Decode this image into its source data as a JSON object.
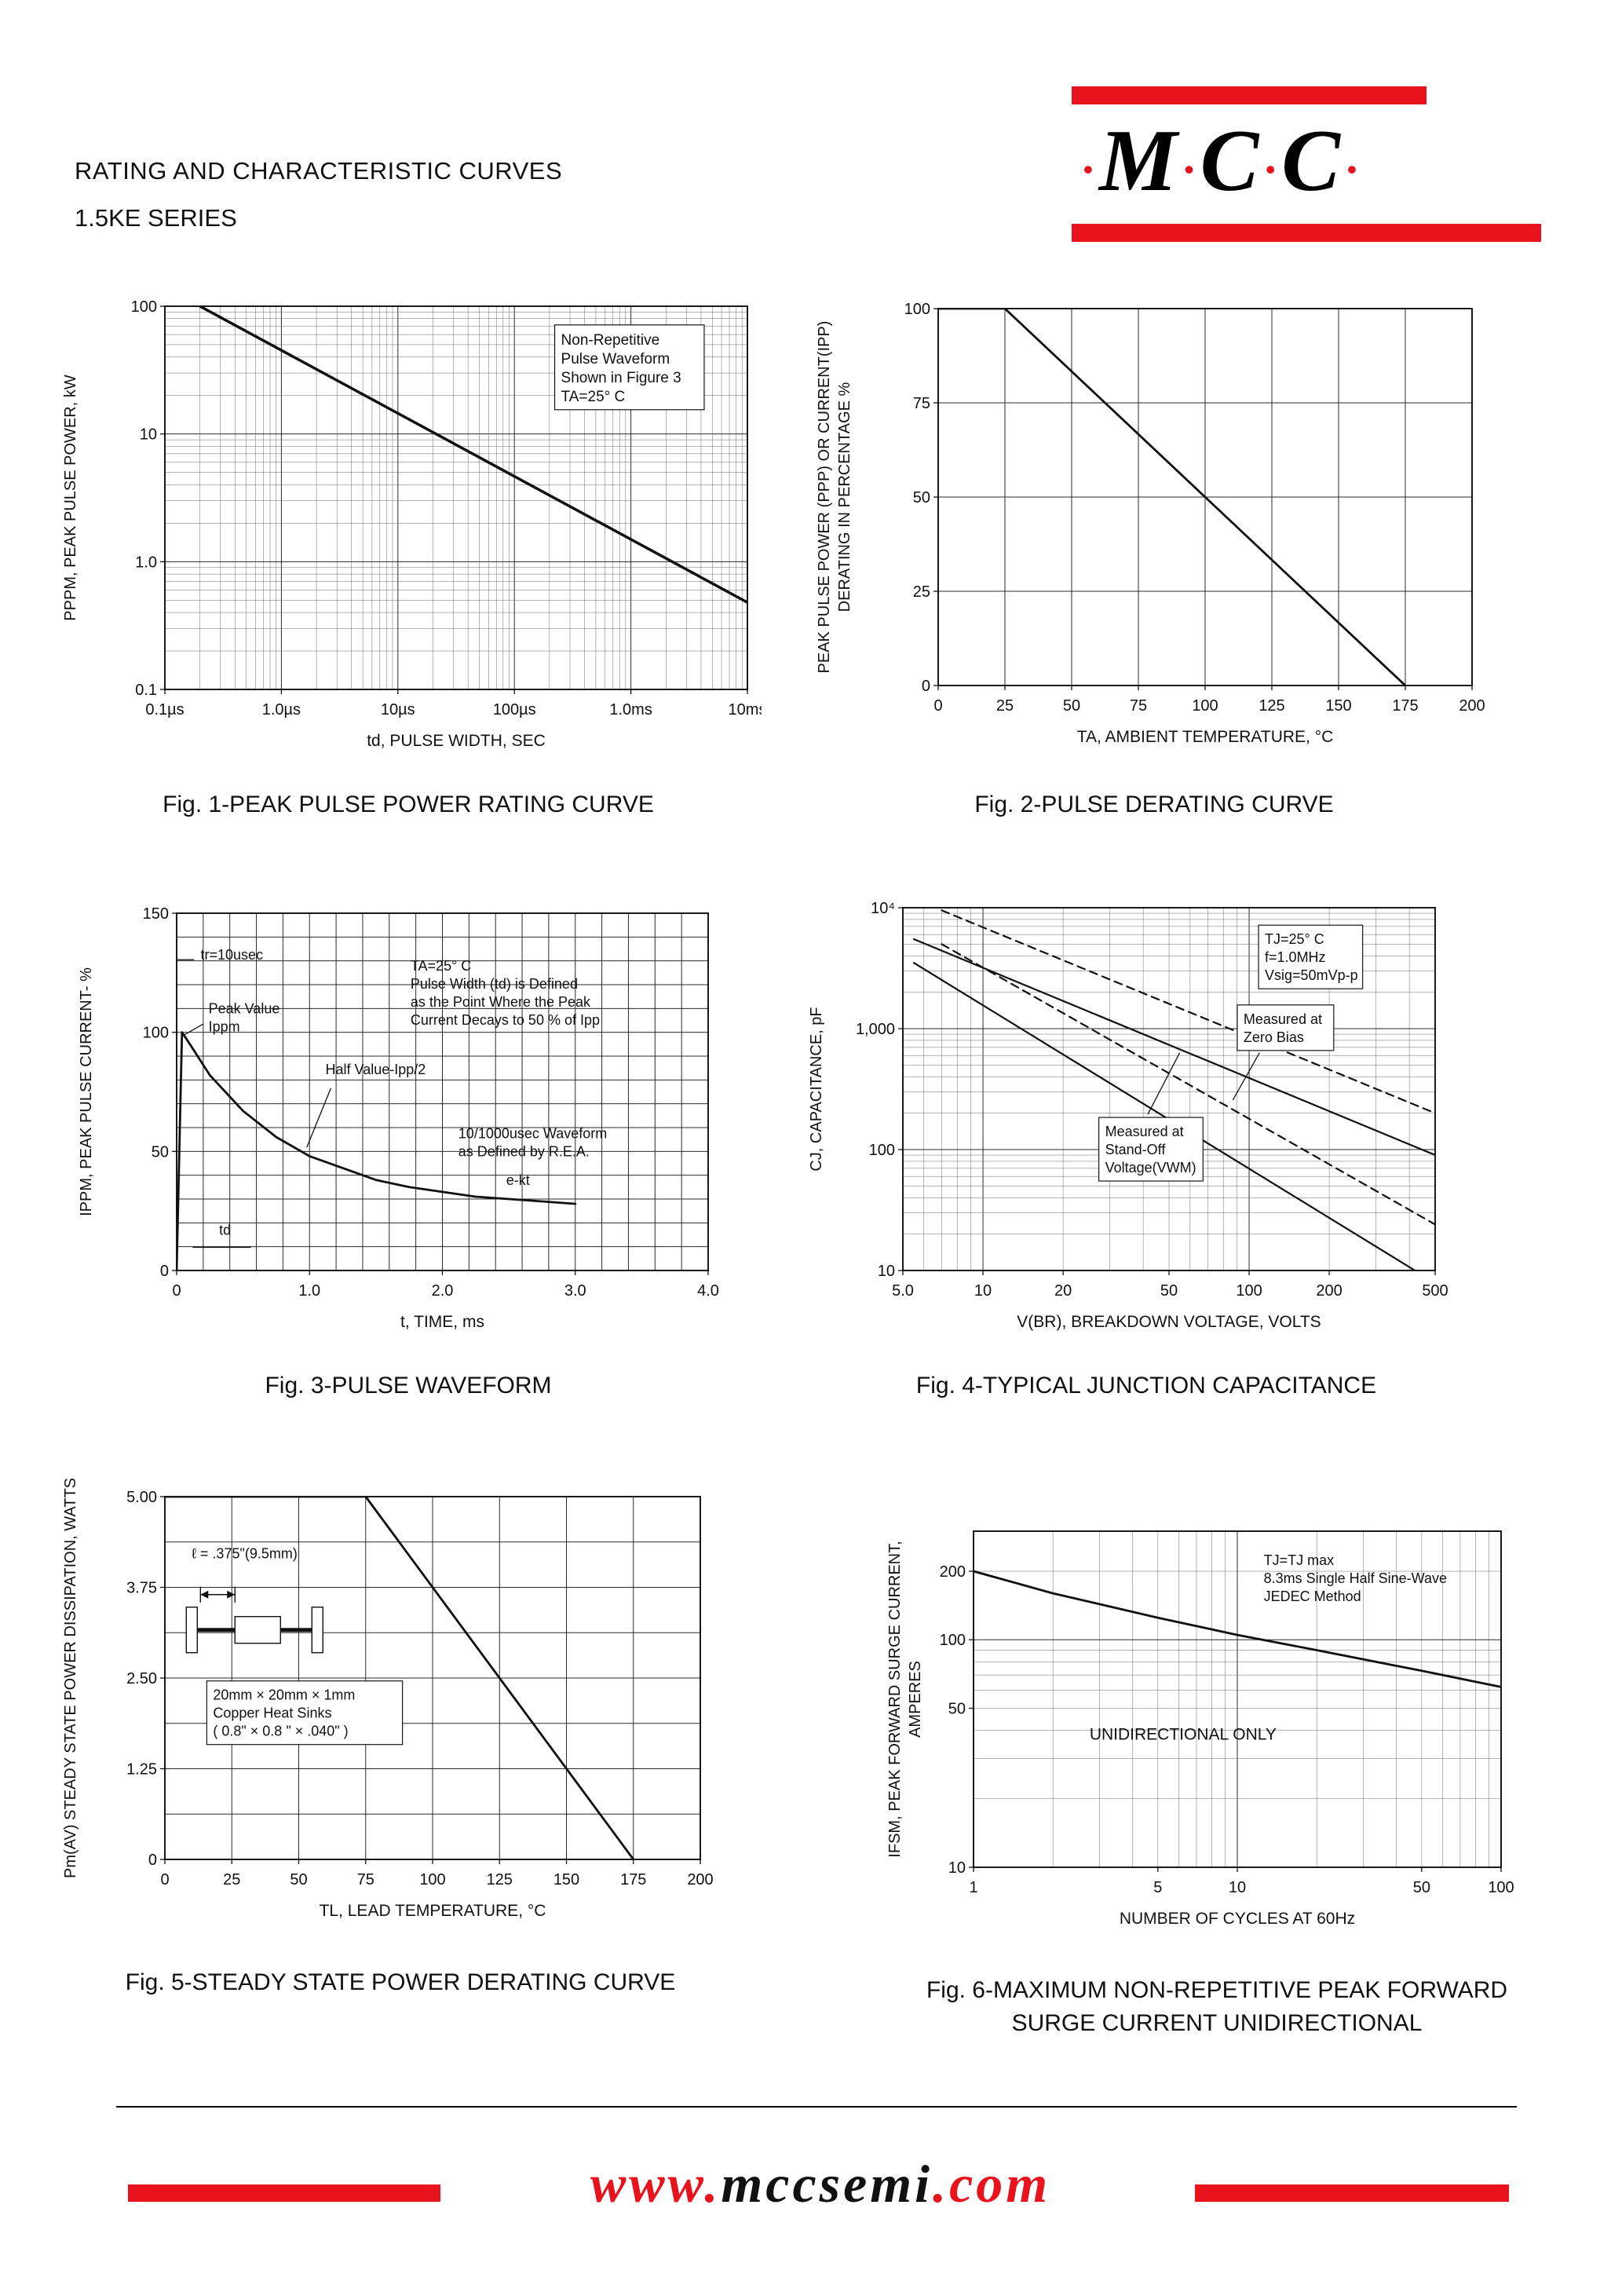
{
  "page": {
    "title": "RATING AND CHARACTERISTIC CURVES",
    "subtitle": "1.5KE SERIES",
    "colors": {
      "accent_red": "#e8131d",
      "ink": "#111111"
    }
  },
  "logo": {
    "dot": "·",
    "l1": "M",
    "l2": "C",
    "l3": "C"
  },
  "footer": {
    "prefix": "www.",
    "domain": "mccsemi",
    "suffix": ".com"
  },
  "chart_data": [
    {
      "id": "fig1",
      "type": "line",
      "caption": "Fig. 1-PEAK PULSE POWER RATING CURVE",
      "xlabel": "td, PULSE WIDTH, SEC",
      "ylabel": [
        "PPPM, PEAK PULSE POWER, kW"
      ],
      "xscale": "log",
      "xlim": [
        1e-07,
        0.01
      ],
      "yscale": "log",
      "ylim": [
        0.1,
        100
      ],
      "xticks": [
        {
          "v": 1e-07,
          "t": "0.1µs"
        },
        {
          "v": 1e-06,
          "t": "1.0µs"
        },
        {
          "v": 1e-05,
          "t": "10µs"
        },
        {
          "v": 0.0001,
          "t": "100µs"
        },
        {
          "v": 0.001,
          "t": "1.0ms"
        },
        {
          "v": 0.01,
          "t": "10ms"
        }
      ],
      "yticks": [
        {
          "v": 0.1,
          "t": "0.1"
        },
        {
          "v": 1,
          "t": "1.0"
        },
        {
          "v": 10,
          "t": "10"
        },
        {
          "v": 100,
          "t": "100"
        }
      ],
      "series": [
        {
          "name": "peak-pulse-power",
          "points": [
            [
              2e-07,
              100
            ],
            [
              0.01,
              0.48
            ]
          ],
          "width": 3.5
        }
      ],
      "annotations": [
        {
          "fx": 0.68,
          "fy": 0.1,
          "box": true,
          "fs": 19,
          "lines": [
            "Non-Repetitive",
            "Pulse Waveform",
            "Shown in Figure 3",
            "TA=25° C"
          ]
        }
      ]
    },
    {
      "id": "fig2",
      "type": "line",
      "caption": "Fig. 2-PULSE DERATING CURVE",
      "xlabel": "TA, AMBIENT  TEMPERATURE, °C",
      "ylabel": [
        "PEAK PULSE POWER (PPP) OR CURRENT(IPP)",
        "DERATING IN PERCENTAGE %"
      ],
      "xscale": "linear",
      "xlim": [
        0,
        200
      ],
      "xgrid": 25,
      "yscale": "linear",
      "ylim": [
        0,
        100
      ],
      "ygrid": 25,
      "xticks": [
        {
          "v": 0,
          "t": "0"
        },
        {
          "v": 25,
          "t": "25"
        },
        {
          "v": 50,
          "t": "50"
        },
        {
          "v": 75,
          "t": "75"
        },
        {
          "v": 100,
          "t": "100"
        },
        {
          "v": 125,
          "t": "125"
        },
        {
          "v": 150,
          "t": "150"
        },
        {
          "v": 175,
          "t": "175"
        },
        {
          "v": 200,
          "t": "200"
        }
      ],
      "yticks": [
        {
          "v": 0,
          "t": "0"
        },
        {
          "v": 25,
          "t": "25"
        },
        {
          "v": 50,
          "t": "50"
        },
        {
          "v": 75,
          "t": "75"
        },
        {
          "v": 100,
          "t": "100"
        }
      ],
      "series": [
        {
          "name": "derating",
          "points": [
            [
              0,
              100
            ],
            [
              25,
              100
            ],
            [
              175,
              0
            ]
          ],
          "width": 2.8
        }
      ],
      "annotations": []
    },
    {
      "id": "fig3",
      "type": "line",
      "caption": "Fig. 3-PULSE WAVEFORM",
      "xlabel": "t, TIME, ms",
      "ylabel": [
        "IPPM, PEAK PULSE CURRENT- %"
      ],
      "xscale": "linear",
      "xlim": [
        0,
        4
      ],
      "xgrid": 0.2,
      "yscale": "linear",
      "ylim": [
        0,
        150
      ],
      "ygrid": 10,
      "xticks": [
        {
          "v": 0,
          "t": "0"
        },
        {
          "v": 1,
          "t": "1.0"
        },
        {
          "v": 2,
          "t": "2.0"
        },
        {
          "v": 3,
          "t": "3.0"
        },
        {
          "v": 4,
          "t": "4.0"
        }
      ],
      "yticks": [
        {
          "v": 0,
          "t": "0"
        },
        {
          "v": 50,
          "t": "50"
        },
        {
          "v": 100,
          "t": "100"
        },
        {
          "v": 150,
          "t": "150"
        }
      ],
      "series": [
        {
          "name": "pulse-waveform",
          "points": [
            [
              0,
              0
            ],
            [
              0.04,
              100
            ],
            [
              0.1,
              95
            ],
            [
              0.25,
              82
            ],
            [
              0.5,
              67
            ],
            [
              0.75,
              56
            ],
            [
              1.0,
              48
            ],
            [
              1.25,
              43
            ],
            [
              1.5,
              38
            ],
            [
              1.75,
              35
            ],
            [
              2.0,
              33
            ],
            [
              2.25,
              31
            ],
            [
              2.5,
              30
            ],
            [
              2.75,
              29
            ],
            [
              3.0,
              28
            ]
          ],
          "width": 2.8
        }
      ],
      "annotations": [
        {
          "fx": 0.045,
          "fy": 0.13,
          "lines": [
            "tr=10usec"
          ],
          "leader": [
            0.0,
            0.13,
            0.033,
            0.13
          ]
        },
        {
          "fx": 0.06,
          "fy": 0.28,
          "lines": [
            "Peak Value",
            "Ippm"
          ],
          "leader": [
            0.05,
            0.31,
            0.015,
            0.34
          ]
        },
        {
          "fx": 0.28,
          "fy": 0.45,
          "lines": [
            "Half Value-Ipp/2"
          ],
          "leader": [
            0.29,
            0.49,
            0.245,
            0.655
          ]
        },
        {
          "fx": 0.44,
          "fy": 0.16,
          "lines": [
            "TA=25° C",
            "Pulse Width (td) is Defined",
            "as the Point Where the Peak",
            "Current Decays to 50 % of Ipp"
          ]
        },
        {
          "fx": 0.53,
          "fy": 0.63,
          "lines": [
            "10/1000usec Waveform",
            "as Defined by R.E.A."
          ]
        },
        {
          "fx": 0.62,
          "fy": 0.76,
          "lines": [
            "e-kt"
          ]
        },
        {
          "fx": 0.08,
          "fy": 0.9,
          "lines": [
            "td"
          ],
          "leader": [
            0.03,
            0.935,
            0.14,
            0.935
          ]
        }
      ]
    },
    {
      "id": "fig4",
      "type": "line",
      "caption": "Fig. 4-TYPICAL JUNCTION CAPACITANCE",
      "xlabel": "V(BR), BREAKDOWN VOLTAGE, VOLTS",
      "ylabel": [
        "CJ, CAPACITANCE, pF"
      ],
      "xscale": "log",
      "xlim": [
        5,
        500
      ],
      "yscale": "log",
      "ylim": [
        10,
        10000
      ],
      "xticks": [
        {
          "v": 5,
          "t": "5.0"
        },
        {
          "v": 10,
          "t": "10"
        },
        {
          "v": 20,
          "t": "20"
        },
        {
          "v": 50,
          "t": "50"
        },
        {
          "v": 100,
          "t": "100"
        },
        {
          "v": 200,
          "t": "200"
        },
        {
          "v": 500,
          "t": "500"
        }
      ],
      "yticks": [
        {
          "v": 10,
          "t": "10"
        },
        {
          "v": 100,
          "t": "100"
        },
        {
          "v": 1000,
          "t": "1,000"
        },
        {
          "v": 10000,
          "t": "10⁴"
        }
      ],
      "series": [
        {
          "name": "zero-bias-dashed",
          "points": [
            [
              7,
              9500
            ],
            [
              500,
              200
            ]
          ],
          "dash": true,
          "width": 2.2
        },
        {
          "name": "zero-bias-solid",
          "points": [
            [
              5.5,
              5500
            ],
            [
              500,
              90
            ]
          ],
          "width": 2.2
        },
        {
          "name": "standoff-dashed",
          "points": [
            [
              7,
              5000
            ],
            [
              500,
              24
            ]
          ],
          "dash": true,
          "width": 2.2
        },
        {
          "name": "standoff-solid",
          "points": [
            [
              5.5,
              3500
            ],
            [
              420,
              10
            ]
          ],
          "width": 2.2
        }
      ],
      "annotations": [
        {
          "fx": 0.68,
          "fy": 0.1,
          "box": true,
          "lines": [
            "TJ=25° C",
            "f=1.0MHz",
            "Vsig=50mVp-p"
          ]
        },
        {
          "fx": 0.64,
          "fy": 0.32,
          "box": true,
          "lines": [
            "Measured at",
            "Zero Bias"
          ],
          "leader": [
            0.67,
            0.4,
            0.62,
            0.53
          ]
        },
        {
          "fx": 0.38,
          "fy": 0.63,
          "box": true,
          "lines": [
            "Measured at",
            "Stand-Off",
            "Voltage(VWM)"
          ],
          "leader": [
            0.46,
            0.57,
            0.52,
            0.4
          ]
        }
      ]
    },
    {
      "id": "fig5",
      "type": "line",
      "caption": "Fig. 5-STEADY STATE POWER DERATING CURVE",
      "xlabel": "TL, LEAD TEMPERATURE, °C",
      "ylabel": [
        "Pm(AV) STEADY STATE POWER DISSIPATION, WATTS"
      ],
      "xscale": "linear",
      "xlim": [
        0,
        200
      ],
      "xgrid": 25,
      "yscale": "linear",
      "ylim": [
        0,
        5
      ],
      "ygrid": 0.625,
      "xticks": [
        {
          "v": 0,
          "t": "0"
        },
        {
          "v": 25,
          "t": "25"
        },
        {
          "v": 50,
          "t": "50"
        },
        {
          "v": 75,
          "t": "75"
        },
        {
          "v": 100,
          "t": "100"
        },
        {
          "v": 125,
          "t": "125"
        },
        {
          "v": 150,
          "t": "150"
        },
        {
          "v": 175,
          "t": "175"
        },
        {
          "v": 200,
          "t": "200"
        }
      ],
      "yticks": [
        {
          "v": 0,
          "t": "0"
        },
        {
          "v": 1.25,
          "t": "1.25"
        },
        {
          "v": 2.5,
          "t": "2.50"
        },
        {
          "v": 3.75,
          "t": "3.75"
        },
        {
          "v": 5,
          "t": "5.00"
        }
      ],
      "series": [
        {
          "name": "power-derating",
          "points": [
            [
              0,
              5
            ],
            [
              75,
              5
            ],
            [
              175,
              0
            ]
          ],
          "width": 2.8
        }
      ],
      "annotations": [
        {
          "fx": 0.05,
          "fy": 0.17,
          "lines": [
            "ℓ = .375\"(9.5mm)"
          ]
        },
        {
          "fx": 0.04,
          "fy": 0.27,
          "sketch": "heatsink",
          "lines": []
        },
        {
          "fx": 0.09,
          "fy": 0.56,
          "box": true,
          "lines": [
            "20mm × 20mm × 1mm",
            "Copper Heat Sinks",
            "( 0.8\" × 0.8 \" × .040\" )"
          ]
        }
      ]
    },
    {
      "id": "fig6",
      "type": "line",
      "caption": "Fig. 6-MAXIMUM NON-REPETITIVE PEAK FORWARD",
      "caption2": "SURGE CURRENT UNIDIRECTIONAL",
      "xlabel": "NUMBER OF CYCLES AT 60Hz",
      "ylabel": [
        "IFSM, PEAK FORWARD SURGE CURRENT,",
        "AMPERES"
      ],
      "xscale": "log",
      "xlim": [
        1,
        100
      ],
      "yscale": "log",
      "ylim": [
        10,
        300
      ],
      "xticks": [
        {
          "v": 1,
          "t": "1"
        },
        {
          "v": 5,
          "t": "5"
        },
        {
          "v": 10,
          "t": "10"
        },
        {
          "v": 50,
          "t": "50"
        },
        {
          "v": 100,
          "t": "100"
        }
      ],
      "yticks": [
        {
          "v": 10,
          "t": "10"
        },
        {
          "v": 50,
          "t": "50"
        },
        {
          "v": 100,
          "t": "100"
        },
        {
          "v": 200,
          "t": "200"
        }
      ],
      "series": [
        {
          "name": "surge-current",
          "points": [
            [
              1,
              200
            ],
            [
              2,
              160
            ],
            [
              5,
              125
            ],
            [
              10,
              105
            ],
            [
              20,
              90
            ],
            [
              50,
              73
            ],
            [
              100,
              62
            ]
          ],
          "width": 2.8
        }
      ],
      "annotations": [
        {
          "fx": 0.55,
          "fy": 0.1,
          "lines": [
            "TJ=TJ max",
            "8.3ms Single Half Sine-Wave",
            "JEDEC Method"
          ]
        },
        {
          "fx": 0.22,
          "fy": 0.62,
          "fs": 21,
          "lines": [
            "UNIDIRECTIONAL ONLY"
          ]
        }
      ]
    }
  ]
}
